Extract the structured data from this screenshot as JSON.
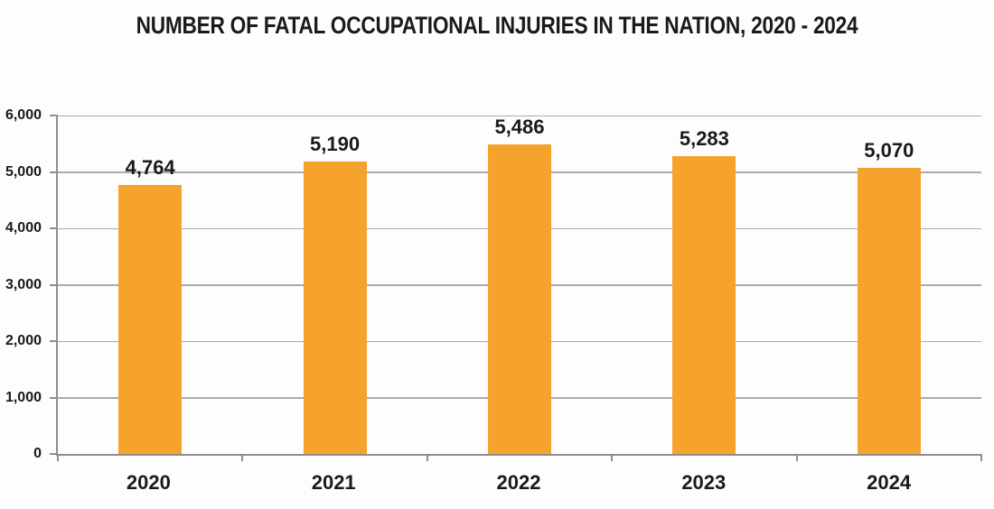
{
  "chart_data": {
    "type": "bar",
    "title": "NUMBER OF FATAL OCCUPATIONAL INJURIES IN THE NATION, 2020 - 2024",
    "categories": [
      "2020",
      "2021",
      "2022",
      "2023",
      "2024"
    ],
    "values": [
      4764,
      5190,
      5486,
      5283,
      5070
    ],
    "value_labels": [
      "4,764",
      "5,190",
      "5,486",
      "5,283",
      "5,070"
    ],
    "xlabel": "",
    "ylabel": "",
    "ylim": [
      0,
      6000
    ],
    "ytick_step": 1000,
    "ytick_labels": [
      "0",
      "1,000",
      "2,000",
      "3,000",
      "4,000",
      "5,000",
      "6,000"
    ],
    "grid": true,
    "legend": false,
    "colors": {
      "bar": "#F6A32D",
      "gridline": "#ABABAB",
      "axis": "#8F8F8F",
      "text": "#1A1A1A",
      "background": "#FDFDFD"
    }
  }
}
